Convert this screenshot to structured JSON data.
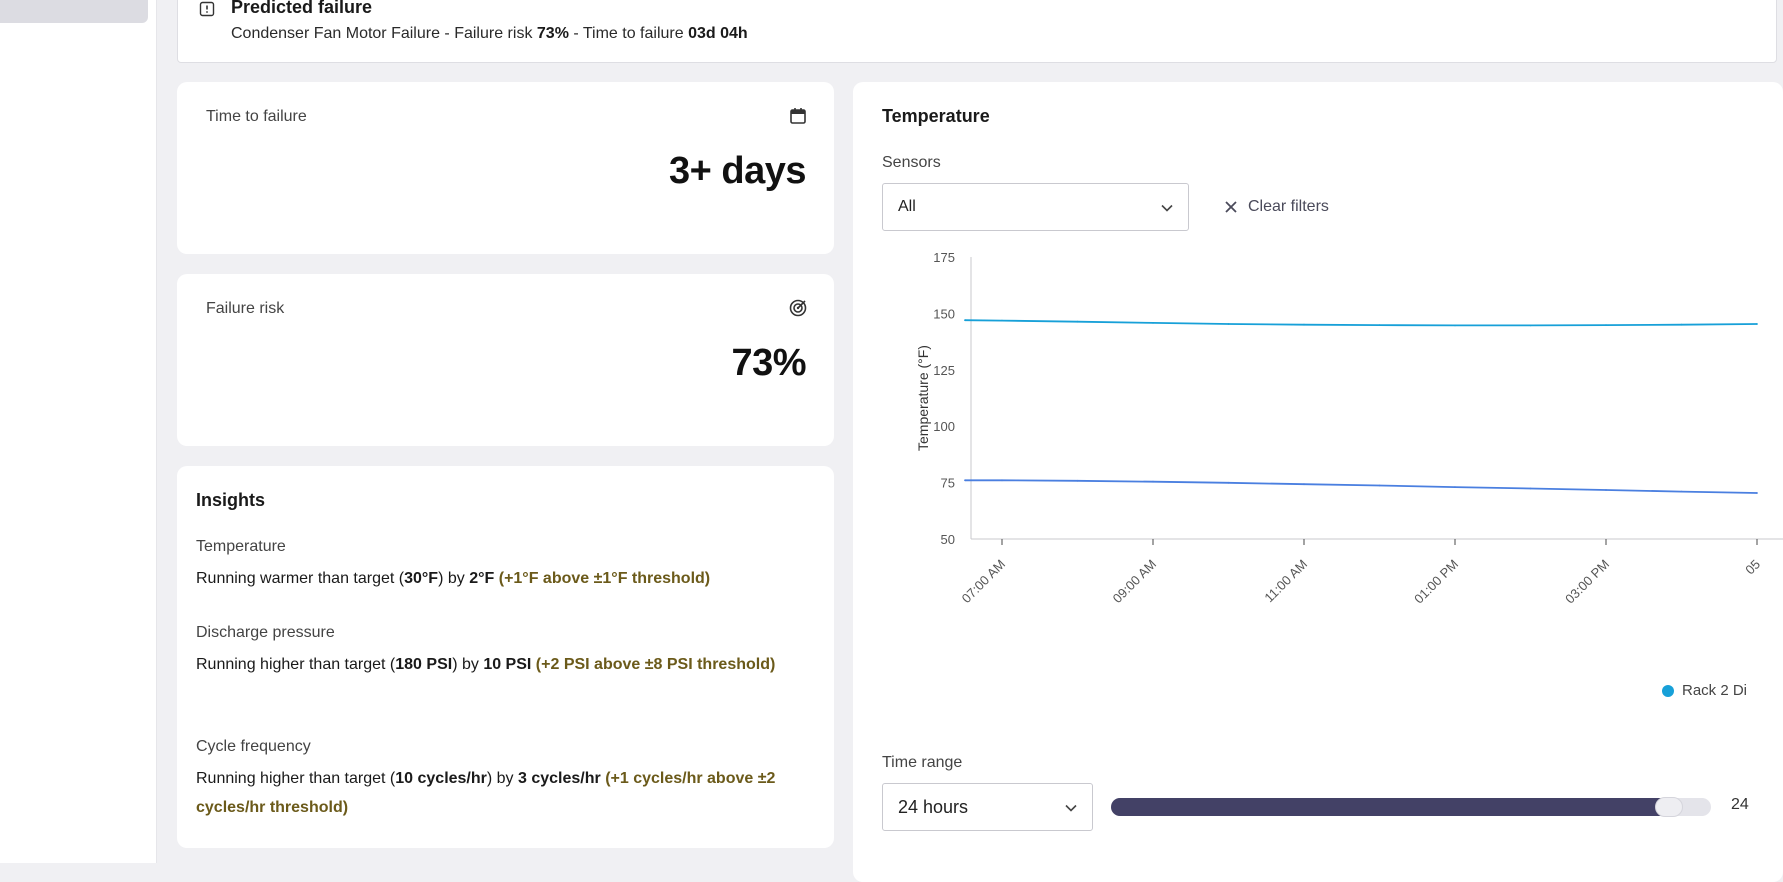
{
  "colors": {
    "navy_fill": "#434166",
    "line_upper": "#17a0d8",
    "line_lower": "#4a7fe0",
    "olive_text": "#6b5a1a"
  },
  "alert": {
    "icon": "alert-info-icon",
    "title": "Predicted failure",
    "desc_prefix": "Condenser Fan Motor Failure - Failure risk ",
    "risk": "73%",
    "desc_mid": " - Time to failure ",
    "ttf": "03d 04h"
  },
  "time_to_failure": {
    "label": "Time to failure",
    "value": "3+ days",
    "icon": "calendar-icon"
  },
  "failure_risk": {
    "label": "Failure risk",
    "value": "73%",
    "icon": "target-icon"
  },
  "insights": {
    "title": "Insights",
    "items": [
      {
        "heading": "Temperature",
        "t1": "Running warmer than target (",
        "b1": "30°F",
        "t2": ") by ",
        "b2": "2°F",
        "t3": " ",
        "note": "(+1°F above ±1°F threshold)"
      },
      {
        "heading": "Discharge pressure",
        "t1": "Running higher than target (",
        "b1": "180 PSI",
        "t2": ") by ",
        "b2": "10 PSI",
        "t3": " ",
        "note": "(+2 PSI above ±8 PSI threshold)"
      },
      {
        "heading": "Cycle frequency",
        "t1": "Running higher than target (",
        "b1": "10 cycles/hr",
        "t2": ") by ",
        "b2": "3 cycles/hr",
        "t3": " ",
        "note": "(+1 cycles/hr above ±2 cycles/hr threshold)"
      }
    ]
  },
  "temperature": {
    "title": "Temperature",
    "sensors_label": "Sensors",
    "sensors_value": "All",
    "clear_filters": "Clear filters",
    "legend_label": "Rack 2 Di",
    "time_range_label": "Time range",
    "time_range_value": "24 hours",
    "slider_value_text": "24",
    "slider_fraction": 0.95
  },
  "chart_data": {
    "type": "line",
    "ylabel": "Temperature (°F)",
    "ylim": [
      50,
      175
    ],
    "yticks": [
      50,
      75,
      100,
      125,
      150,
      175
    ],
    "xticks": [
      "07:00 AM",
      "09:00 AM",
      "11:00 AM",
      "01:00 PM",
      "03:00 PM",
      "05"
    ],
    "x": [
      "06:40 AM",
      "07:00 AM",
      "08:00 AM",
      "09:00 AM",
      "10:00 AM",
      "11:00 AM",
      "12:00 PM",
      "01:00 PM",
      "02:00 PM",
      "03:00 PM",
      "04:00 PM",
      "05:00 PM"
    ],
    "grid": false,
    "series": [
      {
        "values": [
          147,
          146.8,
          146.3,
          145.8,
          145.3,
          145,
          144.8,
          144.7,
          144.7,
          144.8,
          145,
          145.3
        ]
      },
      {
        "values": [
          76,
          76,
          75.8,
          75.4,
          74.9,
          74.3,
          73.7,
          73,
          72.4,
          71.7,
          71,
          70.4
        ]
      }
    ]
  }
}
